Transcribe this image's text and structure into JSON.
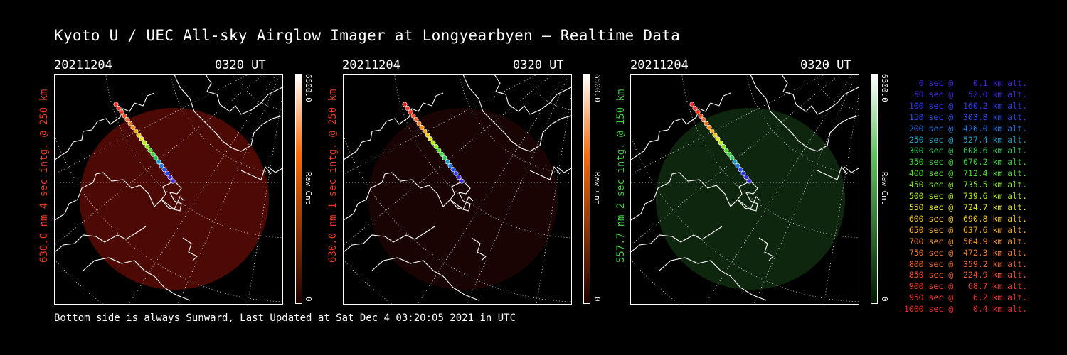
{
  "title": "Kyoto U / UEC All-sky Airglow Imager at Longyearbyen — Realtime Data",
  "panels": [
    {
      "date": "20211204",
      "time": "0320 UT",
      "side_label": "630.0 nm 4 sec intg. @ 250 km",
      "label_color": "#e83a1a",
      "colorbar_max": "6500.0",
      "colorbar_label": "Raw Cnt",
      "colorbar_min": "0",
      "colorbar_top": "#ffffff",
      "colorbar_mid": "#ff6a00",
      "colorbar_bottom": "#200000",
      "glow_color": "#5a0c06",
      "glow_opacity": 0.85
    },
    {
      "date": "20211204",
      "time": "0320 UT",
      "side_label": "630.0 nm 1 sec intg. @ 250 km",
      "label_color": "#e83a1a",
      "colorbar_max": "6500.0",
      "colorbar_label": "Raw Cnt",
      "colorbar_min": "0",
      "colorbar_top": "#ffffff",
      "colorbar_mid": "#ff6a00",
      "colorbar_bottom": "#200000",
      "glow_color": "#1c0403",
      "glow_opacity": 0.9
    },
    {
      "date": "20211204",
      "time": "0320 UT",
      "side_label": "557.7 nm 2 sec intg. @ 150 km",
      "label_color": "#3ec83e",
      "colorbar_max": "6500.0",
      "colorbar_label": "Raw Cnt",
      "colorbar_min": "0",
      "colorbar_top": "#ffffff",
      "colorbar_mid": "#5ac85a",
      "colorbar_bottom": "#001a00",
      "glow_color": "#0f2a0f",
      "glow_opacity": 0.9
    }
  ],
  "footer": "Bottom side is always Sunward, Last Updated at Sat Dec  4 03:20:05 2021 in UTC",
  "legend": [
    {
      "text": "   0 sec @    0.1 km alt.",
      "color": "#3c28e6"
    },
    {
      "text": "  50 sec @   52.0 km alt.",
      "color": "#3c28e6"
    },
    {
      "text": " 100 sec @  160.2 km alt.",
      "color": "#2a3cf0"
    },
    {
      "text": " 150 sec @  303.8 km alt.",
      "color": "#2850f0"
    },
    {
      "text": " 200 sec @  426.0 km alt.",
      "color": "#1e78e6"
    },
    {
      "text": " 250 sec @  527.4 km alt.",
      "color": "#1aa0c8"
    },
    {
      "text": " 300 sec @  608.6 km alt.",
      "color": "#2ac85a"
    },
    {
      "text": " 350 sec @  670.2 km alt.",
      "color": "#3cd23c"
    },
    {
      "text": " 400 sec @  712.4 km alt.",
      "color": "#50dc28"
    },
    {
      "text": " 450 sec @  735.5 km alt.",
      "color": "#82e61e"
    },
    {
      "text": " 500 sec @  739.6 km alt.",
      "color": "#b4f01e"
    },
    {
      "text": " 550 sec @  724.7 km alt.",
      "color": "#e6e61e"
    },
    {
      "text": " 600 sec @  690.8 km alt.",
      "color": "#f0c81e"
    },
    {
      "text": " 650 sec @  637.6 km alt.",
      "color": "#f0aa1e"
    },
    {
      "text": " 700 sec @  564.9 km alt.",
      "color": "#f08c1e"
    },
    {
      "text": " 750 sec @  472.3 km alt.",
      "color": "#f07828"
    },
    {
      "text": " 800 sec @  359.2 km alt.",
      "color": "#f06428"
    },
    {
      "text": " 850 sec @  224.9 km alt.",
      "color": "#f05028"
    },
    {
      "text": " 900 sec @   68.7 km alt.",
      "color": "#f03c28"
    },
    {
      "text": " 950 sec @    6.2 km alt.",
      "color": "#f03228"
    },
    {
      "text": "1000 sec @    0.4 km alt.",
      "color": "#f02828"
    }
  ]
}
